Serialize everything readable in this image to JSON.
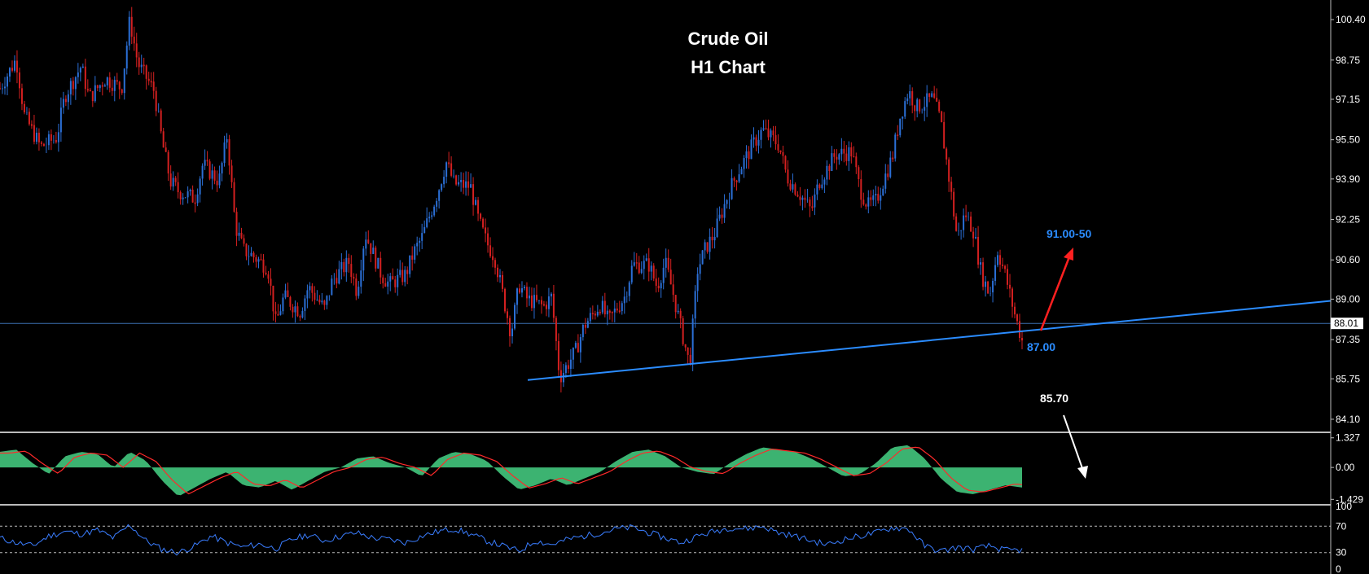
{
  "chart_data": {
    "type": "candlestick",
    "title_line1": "Crude Oil",
    "title_line2": "H1 Chart",
    "price_panel": {
      "ylim": [
        83.6,
        101.2
      ],
      "y_ticks": [
        "100.40",
        "98.75",
        "97.15",
        "95.50",
        "93.90",
        "92.25",
        "90.60",
        "89.00",
        "87.35",
        "85.75",
        "84.10"
      ],
      "y_tick_values": [
        100.4,
        98.75,
        97.15,
        95.5,
        93.9,
        92.25,
        90.6,
        89.0,
        87.35,
        85.75,
        84.1
      ],
      "current_price": "88.01",
      "current_price_value": 88.01,
      "trendline": {
        "start": {
          "bar": 0,
          "price": 85.7
        },
        "end": {
          "bar": 1,
          "price": 88.93
        }
      },
      "path_points": [
        [
          0,
          97.6
        ],
        [
          0.02,
          98.8
        ],
        [
          0.03,
          96.5
        ],
        [
          0.05,
          95.2
        ],
        [
          0.07,
          95.6
        ],
        [
          0.08,
          97.3
        ],
        [
          0.1,
          98.5
        ],
        [
          0.11,
          97.2
        ],
        [
          0.13,
          98.0
        ],
        [
          0.15,
          97.6
        ],
        [
          0.16,
          100.4
        ],
        [
          0.17,
          98.6
        ],
        [
          0.19,
          97.5
        ],
        [
          0.2,
          95.4
        ],
        [
          0.21,
          93.8
        ],
        [
          0.22,
          93.4
        ],
        [
          0.24,
          93.1
        ],
        [
          0.25,
          94.5
        ],
        [
          0.27,
          93.8
        ],
        [
          0.28,
          95.7
        ],
        [
          0.29,
          92.0
        ],
        [
          0.3,
          91.0
        ],
        [
          0.31,
          90.8
        ],
        [
          0.33,
          90.3
        ],
        [
          0.34,
          88.0
        ],
        [
          0.35,
          89.1
        ],
        [
          0.37,
          88.5
        ],
        [
          0.38,
          89.5
        ],
        [
          0.4,
          88.6
        ],
        [
          0.41,
          89.8
        ],
        [
          0.43,
          90.5
        ],
        [
          0.44,
          89.3
        ],
        [
          0.45,
          91.7
        ],
        [
          0.47,
          90.0
        ],
        [
          0.48,
          89.6
        ],
        [
          0.5,
          90.0
        ],
        [
          0.51,
          90.9
        ],
        [
          0.52,
          91.5
        ],
        [
          0.54,
          93.4
        ],
        [
          0.55,
          94.6
        ],
        [
          0.56,
          93.7
        ],
        [
          0.58,
          93.6
        ],
        [
          0.59,
          92.2
        ],
        [
          0.6,
          91.3
        ],
        [
          0.61,
          90.7
        ],
        [
          0.63,
          87.6
        ],
        [
          0.64,
          89.6
        ],
        [
          0.65,
          89.0
        ],
        [
          0.67,
          88.7
        ],
        [
          0.68,
          89.1
        ],
        [
          0.69,
          85.8
        ],
        [
          0.71,
          86.9
        ],
        [
          0.72,
          87.9
        ],
        [
          0.74,
          88.8
        ],
        [
          0.75,
          88.1
        ],
        [
          0.77,
          89.1
        ],
        [
          0.78,
          90.4
        ],
        [
          0.8,
          90.4
        ],
        [
          0.81,
          89.5
        ],
        [
          0.82,
          90.5
        ],
        [
          0.83,
          89.2
        ],
        [
          0.85,
          86.3
        ],
        [
          0.86,
          90.2
        ],
        [
          0.87,
          91.1
        ],
        [
          0.88,
          91.6
        ],
        [
          0.9,
          93.5
        ],
        [
          0.91,
          94.2
        ],
        [
          0.93,
          95.4
        ],
        [
          0.94,
          95.9
        ],
        [
          0.96,
          95.3
        ],
        [
          0.97,
          94.0
        ],
        [
          0.99,
          93.1
        ],
        [
          1.0,
          92.6
        ],
        [
          1.01,
          93.8
        ],
        [
          1.03,
          94.9
        ],
        [
          1.05,
          95.0
        ],
        [
          1.06,
          93.5
        ],
        [
          1.07,
          92.8
        ],
        [
          1.08,
          93.0
        ],
        [
          1.1,
          94.8
        ],
        [
          1.11,
          96.5
        ],
        [
          1.12,
          97.5
        ],
        [
          1.13,
          96.8
        ],
        [
          1.15,
          97.2
        ],
        [
          1.16,
          96.2
        ],
        [
          1.17,
          93.9
        ],
        [
          1.18,
          91.5
        ],
        [
          1.19,
          92.5
        ],
        [
          1.2,
          91.8
        ],
        [
          1.21,
          90.0
        ],
        [
          1.22,
          89.2
        ],
        [
          1.23,
          91.0
        ],
        [
          1.24,
          89.9
        ],
        [
          1.25,
          88.5
        ],
        [
          1.26,
          87.3
        ]
      ]
    },
    "macd_panel": {
      "ylim": [
        -1.6,
        1.5
      ],
      "y_ticks": [
        "1.327",
        "0.00",
        "-1.429"
      ],
      "y_tick_values": [
        1.327,
        0.0,
        -1.429
      ],
      "histogram_color": "#3cb371",
      "signal_color": "#ff2a2a",
      "points": [
        [
          0.0,
          0.7
        ],
        [
          0.02,
          0.8
        ],
        [
          0.04,
          0.2
        ],
        [
          0.06,
          -0.3
        ],
        [
          0.08,
          0.5
        ],
        [
          0.1,
          0.7
        ],
        [
          0.12,
          0.6
        ],
        [
          0.14,
          0.0
        ],
        [
          0.16,
          0.7
        ],
        [
          0.18,
          0.3
        ],
        [
          0.2,
          -0.6
        ],
        [
          0.22,
          -1.3
        ],
        [
          0.24,
          -0.9
        ],
        [
          0.26,
          -0.5
        ],
        [
          0.28,
          -0.2
        ],
        [
          0.3,
          -0.8
        ],
        [
          0.32,
          -0.9
        ],
        [
          0.34,
          -0.6
        ],
        [
          0.36,
          -1.0
        ],
        [
          0.38,
          -0.6
        ],
        [
          0.4,
          -0.2
        ],
        [
          0.42,
          0.0
        ],
        [
          0.44,
          0.4
        ],
        [
          0.46,
          0.5
        ],
        [
          0.48,
          0.2
        ],
        [
          0.5,
          0.0
        ],
        [
          0.52,
          -0.4
        ],
        [
          0.54,
          0.4
        ],
        [
          0.56,
          0.7
        ],
        [
          0.58,
          0.6
        ],
        [
          0.6,
          0.3
        ],
        [
          0.62,
          -0.4
        ],
        [
          0.64,
          -1.0
        ],
        [
          0.66,
          -0.8
        ],
        [
          0.68,
          -0.5
        ],
        [
          0.7,
          -0.8
        ],
        [
          0.72,
          -0.5
        ],
        [
          0.74,
          -0.2
        ],
        [
          0.76,
          0.3
        ],
        [
          0.78,
          0.7
        ],
        [
          0.8,
          0.8
        ],
        [
          0.82,
          0.5
        ],
        [
          0.84,
          0.0
        ],
        [
          0.86,
          -0.2
        ],
        [
          0.88,
          -0.3
        ],
        [
          0.9,
          0.2
        ],
        [
          0.92,
          0.6
        ],
        [
          0.94,
          0.9
        ],
        [
          0.96,
          0.8
        ],
        [
          0.98,
          0.7
        ],
        [
          1.0,
          0.4
        ],
        [
          1.02,
          0.0
        ],
        [
          1.04,
          -0.4
        ],
        [
          1.06,
          -0.3
        ],
        [
          1.08,
          0.2
        ],
        [
          1.1,
          0.9
        ],
        [
          1.12,
          1.0
        ],
        [
          1.14,
          0.4
        ],
        [
          1.16,
          -0.5
        ],
        [
          1.18,
          -1.1
        ],
        [
          1.2,
          -1.2
        ],
        [
          1.22,
          -1.0
        ],
        [
          1.24,
          -0.8
        ],
        [
          1.26,
          -0.9
        ]
      ]
    },
    "rsi_panel": {
      "ylim": [
        0,
        100
      ],
      "y_ticks": [
        "100",
        "70",
        "30",
        "0"
      ],
      "y_tick_values": [
        100,
        70,
        30,
        0
      ],
      "levels": [
        70,
        30
      ],
      "line_color": "#3a7dff",
      "points": [
        [
          0.0,
          52
        ],
        [
          0.02,
          45
        ],
        [
          0.04,
          40
        ],
        [
          0.06,
          55
        ],
        [
          0.08,
          62
        ],
        [
          0.1,
          58
        ],
        [
          0.12,
          64
        ],
        [
          0.14,
          52
        ],
        [
          0.16,
          72
        ],
        [
          0.18,
          48
        ],
        [
          0.2,
          35
        ],
        [
          0.22,
          30
        ],
        [
          0.24,
          40
        ],
        [
          0.26,
          55
        ],
        [
          0.28,
          45
        ],
        [
          0.3,
          38
        ],
        [
          0.32,
          43
        ],
        [
          0.34,
          36
        ],
        [
          0.36,
          50
        ],
        [
          0.38,
          57
        ],
        [
          0.4,
          48
        ],
        [
          0.42,
          55
        ],
        [
          0.44,
          60
        ],
        [
          0.46,
          52
        ],
        [
          0.48,
          50
        ],
        [
          0.5,
          45
        ],
        [
          0.52,
          55
        ],
        [
          0.54,
          62
        ],
        [
          0.56,
          66
        ],
        [
          0.58,
          58
        ],
        [
          0.6,
          48
        ],
        [
          0.62,
          40
        ],
        [
          0.64,
          32
        ],
        [
          0.66,
          48
        ],
        [
          0.68,
          42
        ],
        [
          0.7,
          50
        ],
        [
          0.72,
          55
        ],
        [
          0.74,
          60
        ],
        [
          0.76,
          66
        ],
        [
          0.78,
          68
        ],
        [
          0.8,
          60
        ],
        [
          0.82,
          52
        ],
        [
          0.84,
          45
        ],
        [
          0.86,
          55
        ],
        [
          0.88,
          62
        ],
        [
          0.9,
          68
        ],
        [
          0.92,
          66
        ],
        [
          0.94,
          70
        ],
        [
          0.96,
          60
        ],
        [
          0.98,
          55
        ],
        [
          1.0,
          48
        ],
        [
          1.02,
          42
        ],
        [
          1.04,
          50
        ],
        [
          1.06,
          55
        ],
        [
          1.08,
          60
        ],
        [
          1.1,
          68
        ],
        [
          1.12,
          66
        ],
        [
          1.14,
          40
        ],
        [
          1.16,
          32
        ],
        [
          1.18,
          38
        ],
        [
          1.2,
          35
        ],
        [
          1.22,
          40
        ],
        [
          1.24,
          33
        ],
        [
          1.26,
          34
        ]
      ]
    },
    "annotations": {
      "target_up": {
        "label": "91.00-50",
        "value": 91.0,
        "color": "#2b8cff"
      },
      "support": {
        "label": "87.00",
        "value": 87.0,
        "color": "#2b8cff"
      },
      "target_down": {
        "label": "85.70",
        "value": 85.7,
        "color": "#ffffff"
      }
    },
    "colors": {
      "up": "#2b6fd6",
      "down": "#d42020",
      "trendline": "#2b8cff",
      "background": "#000000",
      "axis_text": "#ffffff"
    }
  }
}
